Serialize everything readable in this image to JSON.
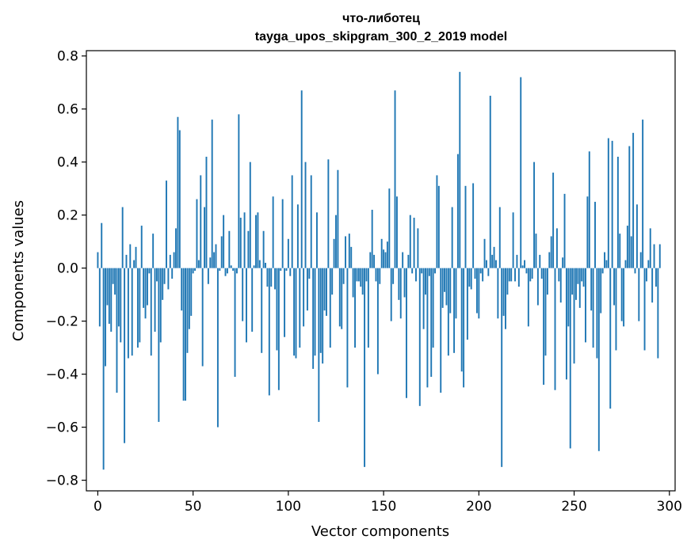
{
  "chart_data": {
    "type": "bar",
    "title": "что-либотец",
    "subtitle": "tayga_upos_skipgram_300_2_2019 model",
    "xlabel": "Vector components",
    "ylabel": "Components values",
    "xlim": [
      -6,
      303
    ],
    "ylim": [
      -0.84,
      0.82
    ],
    "xticks": [
      0,
      50,
      100,
      150,
      200,
      250,
      300
    ],
    "xtick_labels": [
      "0",
      "50",
      "100",
      "150",
      "200",
      "250",
      "300"
    ],
    "yticks": [
      0.8,
      0.6,
      0.4,
      0.2,
      0.0,
      -0.2,
      -0.4,
      -0.6,
      -0.8
    ],
    "ytick_labels": [
      "0.8",
      "0.6",
      "0.4",
      "0.2",
      "0.0",
      "−0.2",
      "−0.4",
      "−0.6",
      "−0.8"
    ],
    "bar_color": "#1f77b4",
    "grid": false,
    "values": [
      0.06,
      -0.22,
      0.17,
      -0.76,
      -0.37,
      -0.14,
      -0.21,
      -0.24,
      -0.06,
      -0.1,
      -0.47,
      -0.22,
      -0.28,
      0.23,
      -0.66,
      0.05,
      -0.34,
      0.09,
      -0.33,
      0.03,
      0.08,
      -0.3,
      -0.28,
      0.16,
      -0.15,
      -0.19,
      -0.14,
      -0.02,
      -0.33,
      0.13,
      -0.24,
      -0.05,
      -0.58,
      -0.28,
      -0.12,
      -0.06,
      0.33,
      -0.08,
      0.05,
      -0.04,
      0.06,
      0.15,
      0.57,
      0.52,
      -0.16,
      -0.5,
      -0.5,
      -0.32,
      -0.23,
      -0.18,
      -0.02,
      -0.01,
      0.26,
      0.03,
      0.35,
      -0.37,
      0.23,
      0.42,
      -0.06,
      0.04,
      0.56,
      0.06,
      0.09,
      -0.6,
      -0.01,
      0.12,
      0.2,
      -0.03,
      -0.02,
      0.14,
      0.01,
      -0.01,
      -0.41,
      -0.02,
      0.58,
      0.19,
      -0.2,
      0.21,
      -0.28,
      0.14,
      0.4,
      -0.24,
      0.01,
      0.2,
      0.21,
      0.03,
      -0.32,
      0.14,
      0.02,
      -0.07,
      -0.48,
      -0.07,
      0.27,
      -0.08,
      -0.31,
      -0.46,
      -0.01,
      0.26,
      -0.26,
      -0.01,
      0.11,
      -0.03,
      0.35,
      -0.33,
      -0.34,
      0.24,
      -0.3,
      0.67,
      -0.22,
      0.4,
      -0.16,
      -0.04,
      0.35,
      -0.38,
      -0.33,
      0.21,
      -0.58,
      -0.32,
      -0.36,
      -0.16,
      -0.18,
      0.41,
      -0.3,
      -0.1,
      0.11,
      0.2,
      0.37,
      -0.22,
      -0.23,
      -0.06,
      0.12,
      -0.45,
      0.13,
      0.08,
      -0.11,
      -0.3,
      -0.05,
      -0.05,
      -0.07,
      -0.1,
      -0.75,
      -0.05,
      -0.3,
      0.06,
      0.22,
      0.05,
      -0.05,
      -0.4,
      -0.06,
      0.11,
      0.07,
      0.06,
      0.1,
      0.3,
      -0.2,
      -0.06,
      0.67,
      0.27,
      -0.12,
      -0.19,
      0.06,
      -0.11,
      -0.49,
      0.05,
      0.2,
      -0.02,
      0.19,
      -0.05,
      0.15,
      -0.52,
      -0.02,
      -0.23,
      -0.1,
      -0.45,
      -0.03,
      -0.41,
      -0.3,
      -0.02,
      0.35,
      0.31,
      -0.47,
      -0.15,
      -0.09,
      -0.14,
      -0.33,
      -0.17,
      0.23,
      -0.32,
      -0.19,
      0.43,
      0.74,
      -0.39,
      -0.45,
      0.31,
      -0.27,
      -0.07,
      -0.08,
      0.32,
      -0.04,
      -0.17,
      -0.19,
      -0.02,
      -0.05,
      0.11,
      0.03,
      -0.03,
      0.65,
      0.05,
      0.08,
      0.03,
      -0.19,
      0.23,
      -0.75,
      -0.18,
      -0.23,
      -0.1,
      -0.05,
      -0.05,
      0.21,
      -0.05,
      0.05,
      -0.07,
      0.72,
      0.01,
      0.03,
      -0.02,
      -0.22,
      -0.05,
      -0.04,
      0.4,
      0.13,
      -0.14,
      0.05,
      -0.04,
      -0.44,
      -0.33,
      -0.1,
      0.06,
      0.12,
      0.36,
      -0.46,
      0.15,
      -0.05,
      -0.13,
      0.04,
      0.28,
      -0.42,
      -0.22,
      -0.68,
      -0.1,
      -0.36,
      -0.12,
      -0.06,
      -0.15,
      -0.05,
      -0.07,
      -0.28,
      0.27,
      0.44,
      -0.16,
      -0.3,
      0.25,
      -0.34,
      -0.69,
      -0.17,
      -0.02,
      0.06,
      0.03,
      0.49,
      -0.53,
      0.48,
      -0.14,
      -0.31,
      0.42,
      0.13,
      -0.2,
      -0.22,
      0.03,
      0.16,
      0.46,
      0.12,
      0.51,
      -0.02,
      0.24,
      -0.2,
      0.06,
      0.56,
      -0.31,
      -0.05,
      0.03,
      0.15,
      -0.13,
      0.09,
      -0.07,
      -0.34,
      0.09
    ]
  }
}
